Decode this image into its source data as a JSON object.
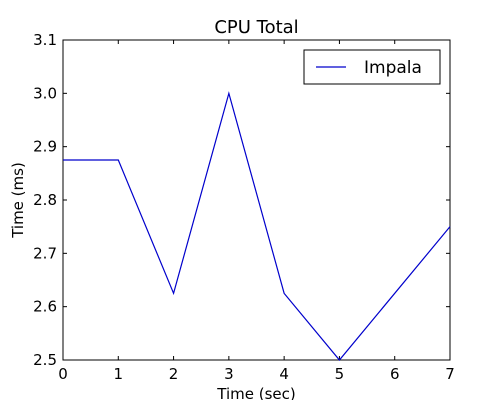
{
  "chart_data": {
    "type": "line",
    "title": "CPU Total",
    "xlabel": "Time (sec)",
    "ylabel": "Time (ms)",
    "xlim": [
      0,
      7
    ],
    "ylim": [
      2.5,
      3.1
    ],
    "x_ticks": [
      0,
      1,
      2,
      3,
      4,
      5,
      6,
      7
    ],
    "y_ticks": [
      2.5,
      2.6,
      2.7,
      2.8,
      2.9,
      3.0,
      3.1
    ],
    "x_tick_labels": [
      "0",
      "1",
      "2",
      "3",
      "4",
      "5",
      "6",
      "7"
    ],
    "y_tick_labels": [
      "2.5",
      "2.6",
      "2.7",
      "2.8",
      "2.9",
      "3.0",
      "3.1"
    ],
    "grid": false,
    "legend_position": "top-right",
    "series": [
      {
        "name": "Impala",
        "color": "#0000cc",
        "x": [
          0,
          1,
          2,
          3,
          4,
          5,
          7
        ],
        "y": [
          2.875,
          2.875,
          2.625,
          3.0,
          2.625,
          2.5,
          2.75
        ]
      }
    ]
  }
}
